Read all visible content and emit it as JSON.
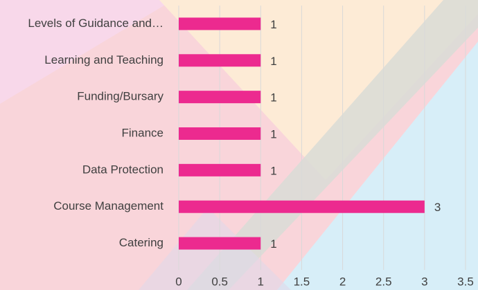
{
  "chart_data": {
    "type": "hbar",
    "categories": [
      "Levels of Guidance and…",
      "Learning and Teaching",
      "Funding/Bursary",
      "Finance",
      "Data Protection",
      "Course Management",
      "Catering"
    ],
    "values": [
      1,
      1,
      1,
      1,
      1,
      3,
      1
    ],
    "color": "#ec2a8f",
    "xlim": [
      0,
      3.5
    ],
    "xticks": [
      0,
      0.5,
      1,
      1.5,
      2,
      2.5,
      3,
      3.5
    ],
    "grid": true
  }
}
